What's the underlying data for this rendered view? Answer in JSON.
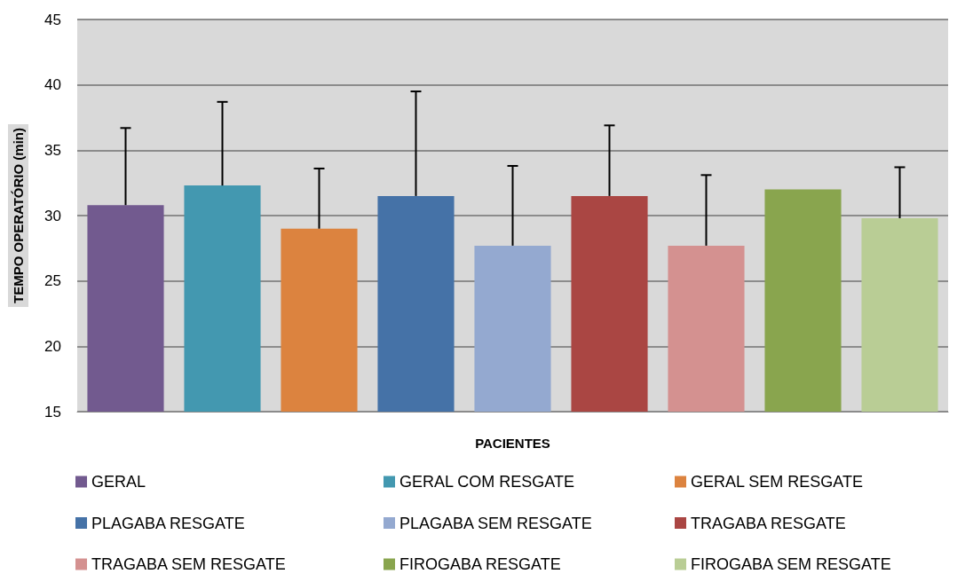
{
  "chart_data": {
    "type": "bar",
    "xlabel": "PACIENTES",
    "ylabel": "TEMPO OPERATÓRIO (min)",
    "categories": [
      null,
      null,
      null,
      null,
      null,
      null,
      null,
      null,
      null
    ],
    "series": [
      {
        "name": "GERAL",
        "color": "#725a8f",
        "values": [
          30.8,
          null,
          null,
          null,
          null,
          null,
          null,
          null,
          null
        ],
        "errors": [
          [
            30.8,
            36.7
          ],
          null,
          null,
          null,
          null,
          null,
          null,
          null,
          null
        ]
      },
      {
        "name": "GERAL COM RESGATE",
        "color": "#4398b0",
        "values": [
          null,
          32.3,
          null,
          null,
          null,
          null,
          null,
          null,
          null
        ],
        "errors": [
          null,
          [
            32.3,
            38.7
          ],
          null,
          null,
          null,
          null,
          null,
          null,
          null
        ]
      },
      {
        "name": "GERAL SEM RESGATE",
        "color": "#dc833f",
        "values": [
          null,
          null,
          29.0,
          null,
          null,
          null,
          null,
          null,
          null
        ],
        "errors": [
          null,
          null,
          [
            29.0,
            33.6
          ],
          null,
          null,
          null,
          null,
          null,
          null
        ]
      },
      {
        "name": "PLAGABA RESGATE",
        "color": "#4572a7",
        "values": [
          null,
          null,
          null,
          31.5,
          null,
          null,
          null,
          null,
          null
        ],
        "errors": [
          null,
          null,
          null,
          [
            31.5,
            39.5
          ],
          null,
          null,
          null,
          null,
          null
        ]
      },
      {
        "name": "PLAGABA SEM RESGATE",
        "color": "#94a9d0",
        "values": [
          null,
          null,
          null,
          null,
          27.7,
          null,
          null,
          null,
          null
        ],
        "errors": [
          null,
          null,
          null,
          null,
          [
            27.7,
            33.8
          ],
          null,
          null,
          null,
          null
        ]
      },
      {
        "name": "TRAGABA RESGATE",
        "color": "#aa4643",
        "values": [
          null,
          null,
          null,
          null,
          null,
          31.5,
          null,
          null,
          null
        ],
        "errors": [
          null,
          null,
          null,
          null,
          null,
          [
            31.5,
            36.9
          ],
          null,
          null,
          null
        ]
      },
      {
        "name": "TRAGABA SEM RESGATE",
        "color": "#d49190",
        "values": [
          null,
          null,
          null,
          null,
          null,
          null,
          27.7,
          null,
          null
        ],
        "errors": [
          null,
          null,
          null,
          null,
          null,
          null,
          [
            27.7,
            33.1
          ],
          null,
          null
        ]
      },
      {
        "name": "FIROGABA RESGATE",
        "color": "#89a54e",
        "values": [
          null,
          null,
          null,
          null,
          null,
          null,
          null,
          32.0,
          null
        ]
      },
      {
        "name": "FIROGABA SEM RESGATE",
        "color": "#b9cd95",
        "values": [
          null,
          null,
          null,
          null,
          null,
          null,
          null,
          null,
          29.8
        ],
        "errors": [
          null,
          null,
          null,
          null,
          null,
          null,
          null,
          null,
          [
            29.8,
            33.7
          ]
        ]
      }
    ],
    "ylim": [
      15,
      45
    ],
    "yticks": [
      15,
      20,
      25,
      30,
      35,
      40,
      45
    ],
    "grid": "y",
    "legend": "bottom"
  }
}
